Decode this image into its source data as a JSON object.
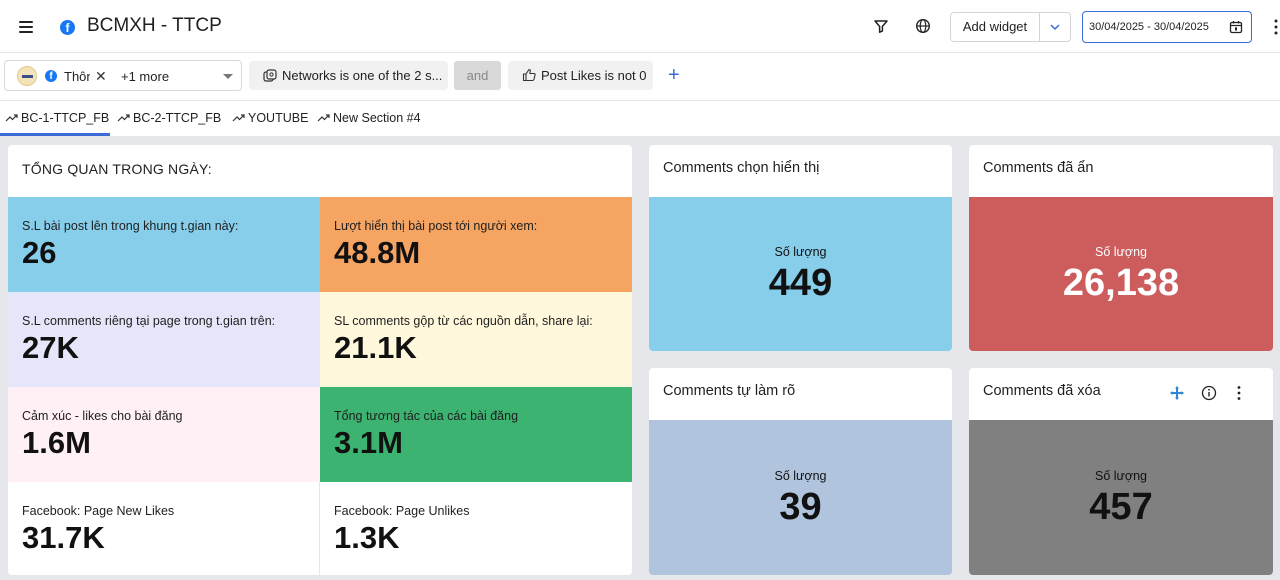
{
  "header": {
    "title": "BCMXH - TTCP",
    "add_widget_label": "Add widget",
    "date_range": "30/04/2025 - 30/04/2025"
  },
  "filters": {
    "page_chip_text": "Thôn",
    "more_text": "+1 more",
    "networks_chip": "Networks is one of the 2 s...",
    "and_label": "and",
    "likes_chip": "Post Likes is not 0"
  },
  "tabs": [
    {
      "label": "BC-1-TTCP_FB"
    },
    {
      "label": "BC-2-TTCP_FB"
    },
    {
      "label": "YOUTUBE"
    },
    {
      "label": "New Section #4"
    }
  ],
  "overview": {
    "title": "TỔNG QUAN TRONG NGÀY:",
    "cells": [
      {
        "label": "S.L bài post lên trong khung t.gian này:",
        "value": "26",
        "color": "#87ceeb"
      },
      {
        "label": "Lượt hiển thị bài post tới người xem:",
        "value": "48.8M",
        "color": "#f5a462"
      },
      {
        "label": "S.L comments riêng tại page trong t.gian trên:",
        "value": "27K",
        "color": "#e6e6fa"
      },
      {
        "label": "SL comments gộp từ các nguồn dẫn, share lại:",
        "value": "21.1K",
        "color": "#fff8dc"
      },
      {
        "label": "Cảm xúc - likes cho bài đăng",
        "value": "1.6M",
        "color": "#fff0f5"
      },
      {
        "label": "Tổng tương tác của các bài đăng",
        "value": "3.1M",
        "color": "#3cb371"
      },
      {
        "label": "Facebook: Page New Likes",
        "value": "31.7K",
        "color": "#ffffff"
      },
      {
        "label": "Facebook: Page Unlikes",
        "value": "1.3K",
        "color": "#ffffff"
      }
    ]
  },
  "cards": [
    {
      "title": "Comments chọn hiển thị",
      "metric_label": "Số lượng",
      "value": "449",
      "color": "#87ceeb",
      "text_color": "#111111"
    },
    {
      "title": "Comments đã ẩn",
      "metric_label": "Số lượng",
      "value": "26,138",
      "color": "#cd5c5c",
      "text_color": "#ffffff"
    },
    {
      "title": "Comments tự làm rõ",
      "metric_label": "Số lượng",
      "value": "39",
      "color": "#b0c4de",
      "text_color": "#111111"
    },
    {
      "title": "Comments đã xóa",
      "metric_label": "Số lượng",
      "value": "457",
      "color": "#808080",
      "text_color": "#111111"
    }
  ],
  "icons": {
    "menu": "hamburger-icon",
    "filter": "filter-icon",
    "globe": "globe-icon",
    "calendar": "calendar-icon",
    "move": "move-icon",
    "info": "info-icon",
    "more": "more-vert-icon"
  }
}
